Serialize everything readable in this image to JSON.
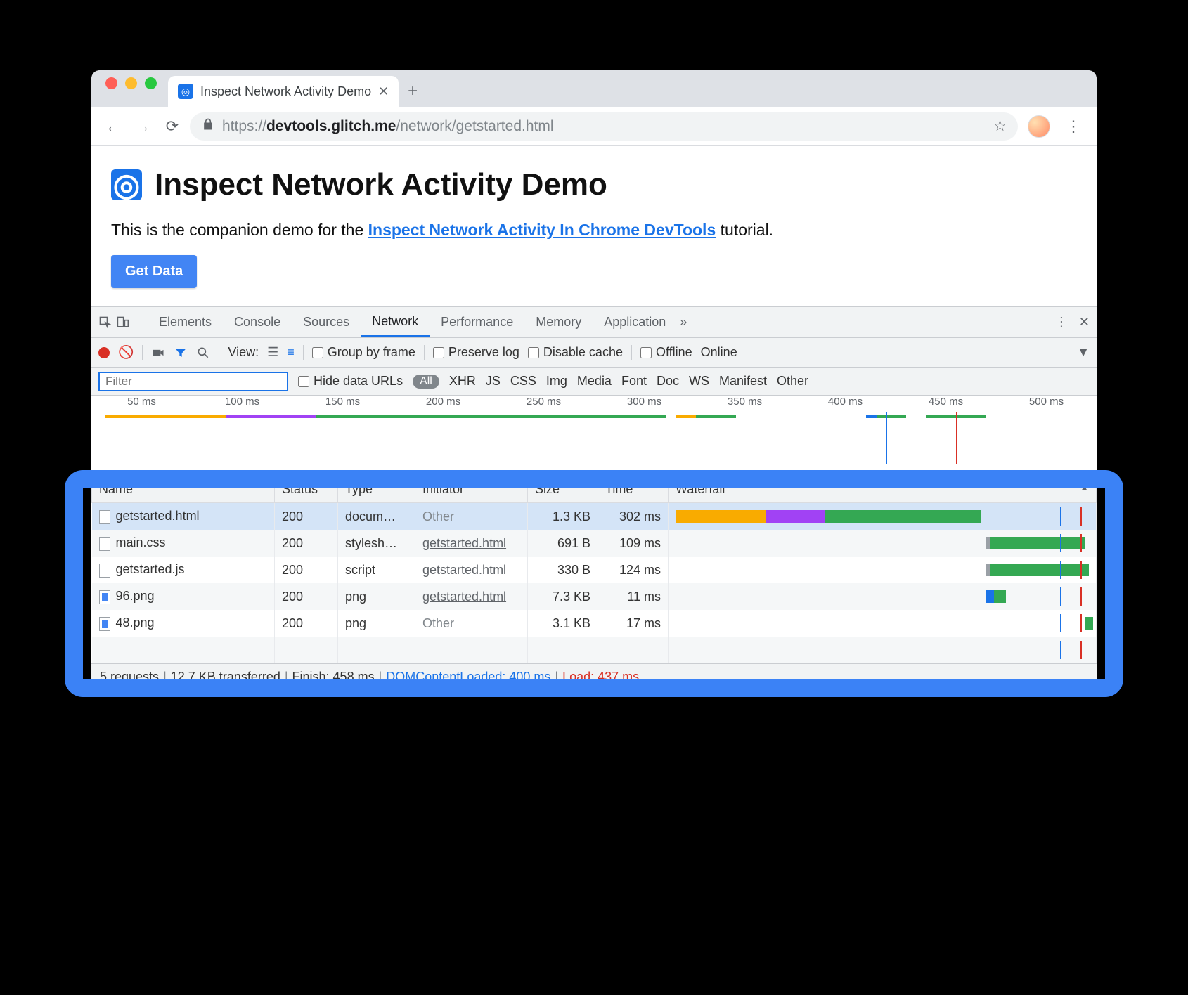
{
  "browser": {
    "tab_title": "Inspect Network Activity Demo",
    "url_host": "devtools.glitch.me",
    "url_prefix": "https://",
    "url_path": "/network/getstarted.html"
  },
  "page": {
    "heading": "Inspect Network Activity Demo",
    "intro_before": "This is the companion demo for the ",
    "intro_link": "Inspect Network Activity In Chrome DevTools",
    "intro_after": " tutorial.",
    "button": "Get Data"
  },
  "devtools": {
    "tabs": [
      "Elements",
      "Console",
      "Sources",
      "Network",
      "Performance",
      "Memory",
      "Application"
    ],
    "active_tab": "Network",
    "toolbar": {
      "view_label": "View:",
      "group_by_frame": "Group by frame",
      "preserve_log": "Preserve log",
      "disable_cache": "Disable cache",
      "offline": "Offline",
      "online": "Online"
    },
    "filter": {
      "placeholder": "Filter",
      "hide_data_urls": "Hide data URLs",
      "types": [
        "All",
        "XHR",
        "JS",
        "CSS",
        "Img",
        "Media",
        "Font",
        "Doc",
        "WS",
        "Manifest",
        "Other"
      ],
      "active_type": "All"
    },
    "overview": {
      "ticks": [
        "50 ms",
        "100 ms",
        "150 ms",
        "200 ms",
        "250 ms",
        "300 ms",
        "350 ms",
        "400 ms",
        "450 ms",
        "500 ms"
      ],
      "bars": [
        {
          "left_pct": 1,
          "width_pct": 12,
          "color": "#f9ab00"
        },
        {
          "left_pct": 13,
          "width_pct": 9,
          "color": "#a142f4"
        },
        {
          "left_pct": 22,
          "width_pct": 35,
          "color": "#34a853"
        },
        {
          "left_pct": 58,
          "width_pct": 6,
          "color": "#34a853"
        },
        {
          "left_pct": 58,
          "width_pct": 2,
          "color": "#f9ab00"
        },
        {
          "left_pct": 77,
          "width_pct": 4,
          "color": "#34a853"
        },
        {
          "left_pct": 77,
          "width_pct": 1,
          "color": "#1a73e8"
        },
        {
          "left_pct": 83,
          "width_pct": 6,
          "color": "#34a853"
        }
      ],
      "markers": [
        {
          "pos_pct": 79,
          "color": "#1a73e8"
        },
        {
          "pos_pct": 86,
          "color": "#d93025"
        }
      ]
    },
    "columns": [
      "Name",
      "Status",
      "Type",
      "Initiator",
      "Size",
      "Time",
      "Waterfall"
    ],
    "sort_column": "Waterfall",
    "requests": [
      {
        "name": "getstarted.html",
        "status": "200",
        "type": "docum…",
        "initiator": "Other",
        "initiator_link": false,
        "size": "1.3 KB",
        "time": "302 ms",
        "selected": true,
        "icon": "doc",
        "waterfall": [
          {
            "left_pct": 0,
            "width_pct": 22,
            "color": "#f9ab00"
          },
          {
            "left_pct": 22,
            "width_pct": 16,
            "color": "#a142f4"
          },
          {
            "left_pct": 36,
            "width_pct": 38,
            "color": "#34a853"
          }
        ]
      },
      {
        "name": "main.css",
        "status": "200",
        "type": "stylesh…",
        "initiator": "getstarted.html",
        "initiator_link": true,
        "size": "691 B",
        "time": "109 ms",
        "selected": false,
        "icon": "doc",
        "waterfall": [
          {
            "left_pct": 75,
            "width_pct": 1,
            "color": "#9aa0a6"
          },
          {
            "left_pct": 76,
            "width_pct": 23,
            "color": "#34a853"
          }
        ]
      },
      {
        "name": "getstarted.js",
        "status": "200",
        "type": "script",
        "initiator": "getstarted.html",
        "initiator_link": true,
        "size": "330 B",
        "time": "124 ms",
        "selected": false,
        "icon": "doc",
        "waterfall": [
          {
            "left_pct": 75,
            "width_pct": 1,
            "color": "#9aa0a6"
          },
          {
            "left_pct": 76,
            "width_pct": 24,
            "color": "#34a853"
          }
        ]
      },
      {
        "name": "96.png",
        "status": "200",
        "type": "png",
        "initiator": "getstarted.html",
        "initiator_link": true,
        "size": "7.3 KB",
        "time": "11 ms",
        "selected": false,
        "icon": "img",
        "waterfall": [
          {
            "left_pct": 75,
            "width_pct": 2,
            "color": "#1a73e8"
          },
          {
            "left_pct": 77,
            "width_pct": 3,
            "color": "#34a853"
          }
        ]
      },
      {
        "name": "48.png",
        "status": "200",
        "type": "png",
        "initiator": "Other",
        "initiator_link": false,
        "size": "3.1 KB",
        "time": "17 ms",
        "selected": false,
        "icon": "img",
        "waterfall": [
          {
            "left_pct": 99,
            "width_pct": 2,
            "color": "#34a853"
          }
        ]
      }
    ],
    "waterfall_markers": [
      {
        "pos_pct": 93,
        "color": "#1a73e8"
      },
      {
        "pos_pct": 98,
        "color": "#d93025"
      }
    ],
    "status": {
      "requests": "5 requests",
      "transferred": "12.7 KB transferred",
      "finish": "Finish: 458 ms",
      "dcl": "DOMContentLoaded: 400 ms",
      "load": "Load: 437 ms"
    }
  },
  "colors": {
    "blue": "#1a73e8",
    "red": "#d93025",
    "green": "#34a853",
    "orange": "#f9ab00",
    "purple": "#a142f4",
    "grey": "#9aa0a6",
    "highlight_border": "#3b82f6"
  }
}
